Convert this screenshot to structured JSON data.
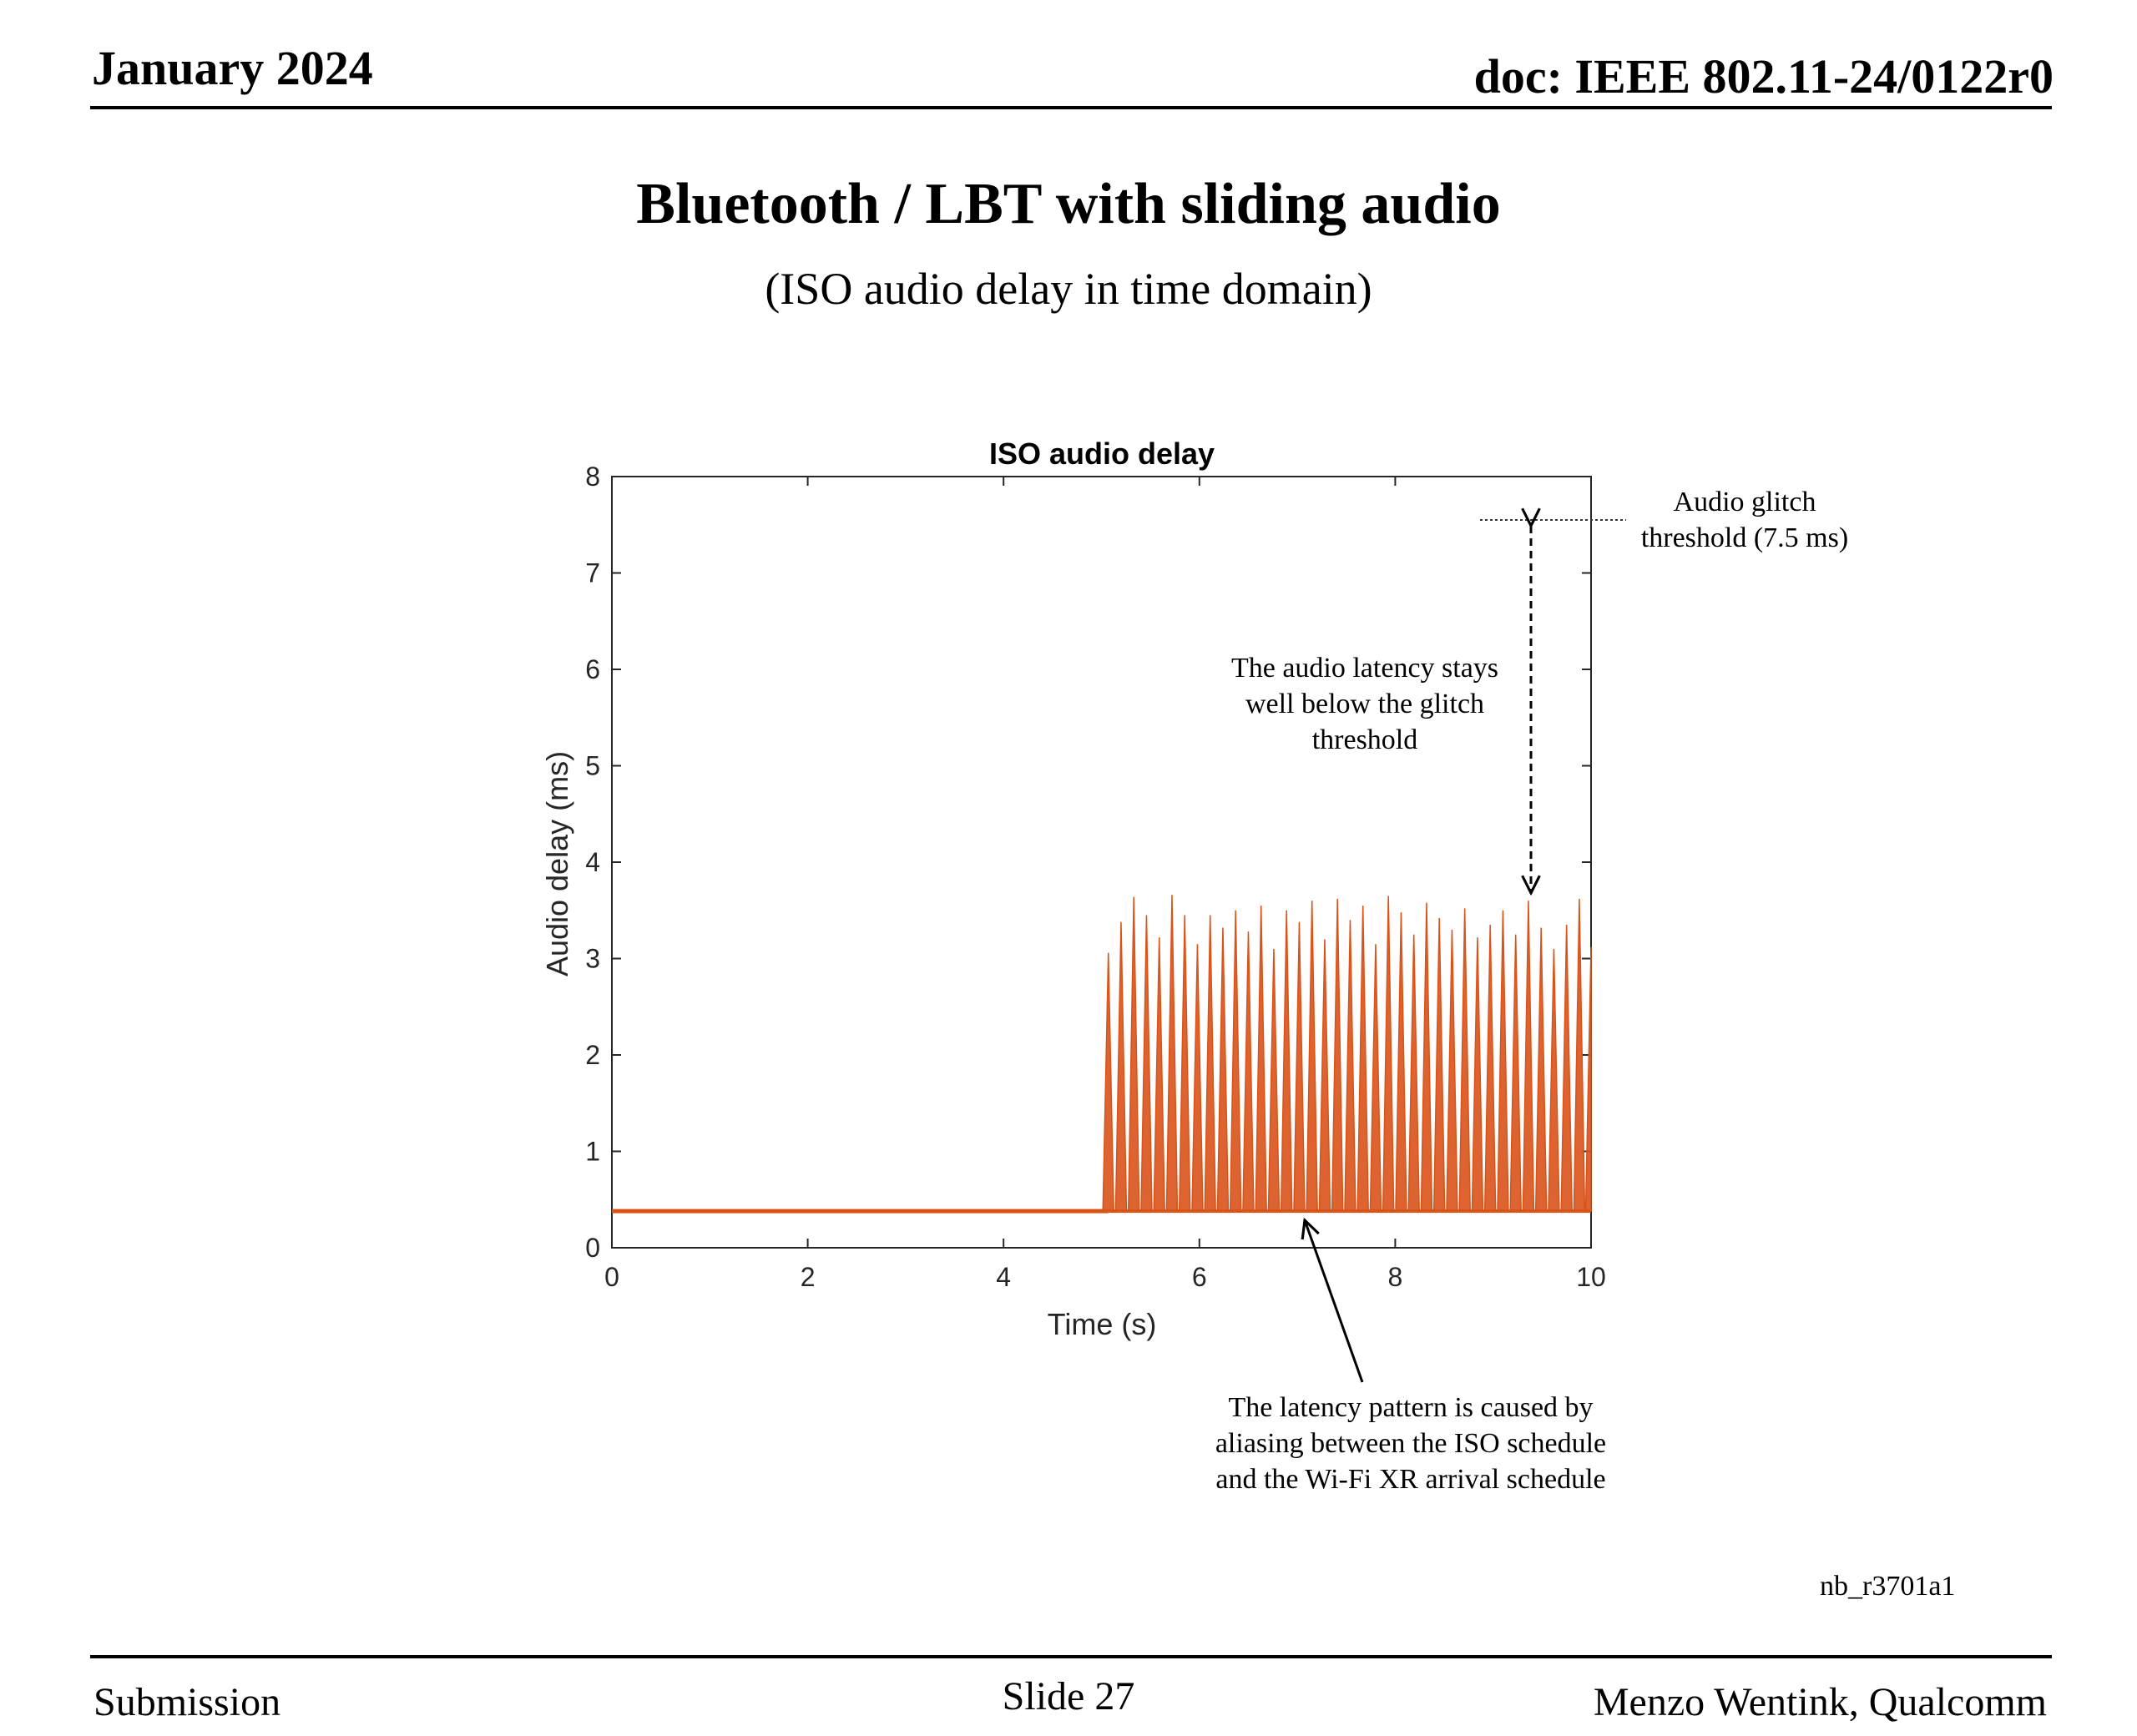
{
  "header": {
    "date": "January 2024",
    "doc": "doc: IEEE 802.11-24/0122r0"
  },
  "slide": {
    "title": "Bluetooth / LBT with sliding audio",
    "subtitle": "(ISO audio delay in time domain)"
  },
  "annotations": {
    "glitch_line1": "Audio glitch",
    "glitch_line2": "threshold (7.5 ms)",
    "stays_line1": "The audio latency stays",
    "stays_line2": "well below the glitch",
    "stays_line3": "threshold",
    "pattern_line1": "The latency pattern is caused by",
    "pattern_line2": "aliasing between the ISO schedule",
    "pattern_line3": "and the Wi-Fi XR arrival schedule",
    "code": "nb_r3701a1"
  },
  "footer": {
    "left": "Submission",
    "center": "Slide 27",
    "right": "Menzo Wentink, Qualcomm"
  },
  "colors": {
    "series": "#d95319",
    "axis": "#262626",
    "text": "#000000"
  },
  "chart_data": {
    "type": "line",
    "title": "ISO audio delay",
    "xlabel": "Time (s)",
    "ylabel": "Audio delay (ms)",
    "xlim": [
      0,
      10
    ],
    "ylim": [
      0,
      8
    ],
    "xticks": [
      0,
      2,
      4,
      6,
      8,
      10
    ],
    "yticks": [
      0,
      1,
      2,
      3,
      4,
      5,
      6,
      7,
      8
    ],
    "grid": false,
    "threshold_ms": 7.5,
    "baseline_ms": 0.38,
    "baseline_interval_s": [
      0,
      5.07
    ],
    "spikes": {
      "x": [
        5.07,
        5.2,
        5.33,
        5.46,
        5.59,
        5.72,
        5.85,
        5.98,
        6.11,
        6.24,
        6.37,
        6.5,
        6.63,
        6.76,
        6.89,
        7.02,
        7.15,
        7.28,
        7.41,
        7.54,
        7.67,
        7.8,
        7.93,
        8.06,
        8.19,
        8.32,
        8.45,
        8.58,
        8.71,
        8.84,
        8.97,
        9.1,
        9.23,
        9.36,
        9.49,
        9.62,
        9.75,
        9.88,
        10.0
      ],
      "y": [
        3.06,
        3.38,
        3.64,
        3.45,
        3.22,
        3.66,
        3.45,
        3.15,
        3.45,
        3.32,
        3.5,
        3.28,
        3.55,
        3.1,
        3.5,
        3.38,
        3.6,
        3.2,
        3.62,
        3.4,
        3.55,
        3.15,
        3.65,
        3.48,
        3.25,
        3.58,
        3.42,
        3.3,
        3.52,
        3.22,
        3.35,
        3.5,
        3.25,
        3.6,
        3.32,
        3.1,
        3.35,
        3.62,
        3.12
      ]
    }
  }
}
